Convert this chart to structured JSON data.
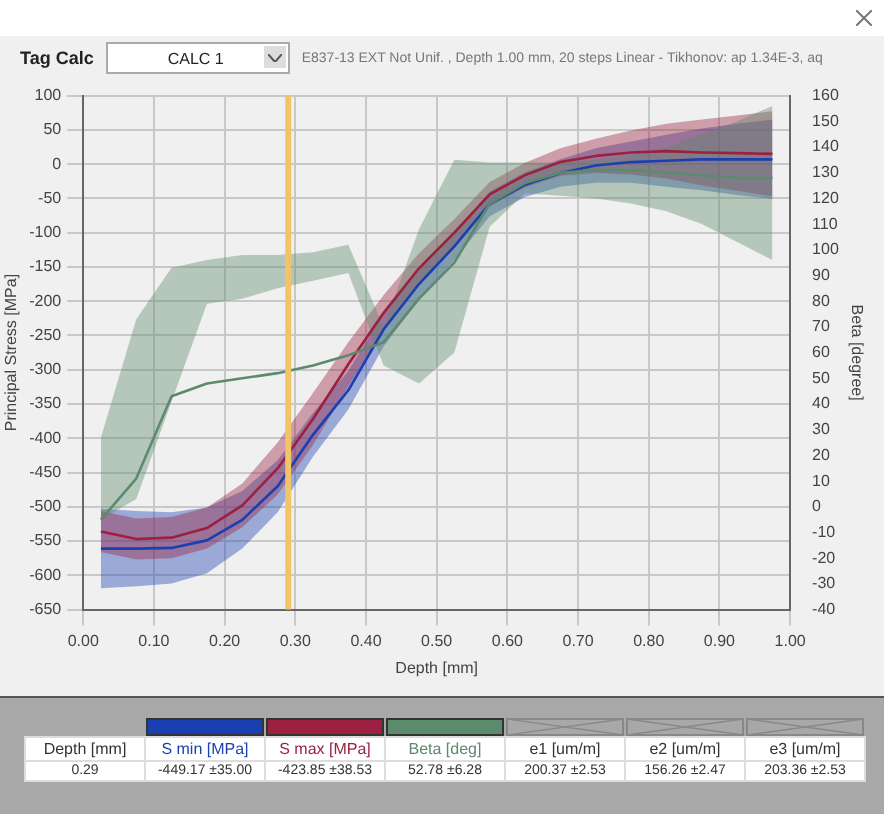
{
  "chart_data": {
    "type": "line",
    "title": "E837-13 EXT Not Unif. , Depth 1.00 mm, 20 steps Linear - Tikhonov: ap 1.34E-3, aq",
    "xlabel": "Depth [mm]",
    "ylabel": "Principal Stress [MPa]",
    "y2label": "Beta [degree]",
    "x": [
      0.025,
      0.075,
      0.125,
      0.175,
      0.225,
      0.275,
      0.325,
      0.375,
      0.425,
      0.475,
      0.525,
      0.575,
      0.625,
      0.675,
      0.725,
      0.775,
      0.825,
      0.875,
      0.925,
      0.975
    ],
    "series": [
      {
        "name": "Beta [deg]",
        "color": "#5c8a6c",
        "axis": "y2",
        "values": [
          -5,
          11,
          43,
          48,
          50,
          52,
          55,
          59,
          64,
          81,
          95,
          118,
          126,
          130,
          131,
          131,
          130,
          129,
          128,
          128
        ],
        "lower": [
          -5,
          3,
          41,
          79,
          81,
          85,
          88,
          91,
          55,
          48,
          60,
          109,
          122,
          121,
          120,
          118,
          115,
          110,
          103,
          96
        ],
        "upper": [
          27,
          73,
          93,
          96,
          98,
          98,
          99,
          102,
          70,
          108,
          135,
          134,
          134,
          134,
          135,
          137,
          140,
          145,
          150,
          156
        ]
      },
      {
        "name": "S max [MPa]",
        "color": "#9c2040",
        "values": [
          -536,
          -547,
          -545,
          -531,
          -498,
          -444,
          -372,
          -292,
          -217,
          -152,
          -100,
          -44,
          -16,
          3,
          12,
          17,
          19,
          17,
          16,
          15
        ],
        "lower": [
          -566,
          -577,
          -575,
          -561,
          -530,
          -482,
          -410,
          -324,
          -243,
          -174,
          -120,
          -62,
          -34,
          -17,
          -13,
          -15,
          -21,
          -31,
          -39,
          -47
        ],
        "upper": [
          -506,
          -517,
          -515,
          -501,
          -466,
          -406,
          -334,
          -260,
          -191,
          -130,
          -80,
          -26,
          2,
          23,
          37,
          49,
          59,
          65,
          71,
          77
        ]
      },
      {
        "name": "S min [MPa]",
        "color": "#1a3fb0",
        "values": [
          -561,
          -561,
          -560,
          -549,
          -519,
          -470,
          -395,
          -330,
          -241,
          -175,
          -120,
          -58,
          -30,
          -13,
          -2,
          3,
          5,
          7,
          7,
          7
        ],
        "lower": [
          -619,
          -616,
          -612,
          -597,
          -561,
          -508,
          -427,
          -358,
          -266,
          -197,
          -140,
          -76,
          -48,
          -33,
          -27,
          -27,
          -33,
          -38,
          -45,
          -51
        ],
        "upper": [
          -503,
          -506,
          -508,
          -501,
          -477,
          -432,
          -363,
          -302,
          -216,
          -153,
          -100,
          -40,
          -12,
          7,
          23,
          33,
          43,
          52,
          59,
          65
        ]
      }
    ],
    "xlim": [
      0,
      1
    ],
    "xticks": [
      {
        "value": 0,
        "label": "0.00"
      },
      {
        "value": 0.1,
        "label": "0.10"
      },
      {
        "value": 0.2,
        "label": "0.20"
      },
      {
        "value": 0.3,
        "label": "0.30"
      },
      {
        "value": 0.4,
        "label": "0.40"
      },
      {
        "value": 0.5,
        "label": "0.50"
      },
      {
        "value": 0.6,
        "label": "0.60"
      },
      {
        "value": 0.7,
        "label": "0.70"
      },
      {
        "value": 0.8,
        "label": "0.80"
      },
      {
        "value": 0.9,
        "label": "0.90"
      },
      {
        "value": 1,
        "label": "1.00"
      }
    ],
    "ylim": [
      -650,
      100
    ],
    "yticks": [
      -650,
      -600,
      -550,
      -500,
      -450,
      -400,
      -350,
      -300,
      -250,
      -200,
      -150,
      -100,
      -50,
      0,
      50,
      100
    ],
    "y2lim": [
      -40,
      160
    ],
    "y2ticks": [
      -40,
      -30,
      -20,
      -10,
      0,
      10,
      20,
      30,
      40,
      50,
      60,
      70,
      80,
      90,
      100,
      110,
      120,
      130,
      140,
      150,
      160
    ],
    "ref_lines": [
      {
        "axis": "x",
        "value": 0.29,
        "color": "#f2c46a"
      }
    ],
    "grid": true,
    "marker": "none",
    "annotations": [
      "Tag Calc",
      "CALC 1",
      "Depth [mm]",
      "0.29",
      "-449.17 ±35.00",
      "-423.85 ±38.53",
      "52.78 ±6.28",
      "e1 [um/m]",
      "200.37 ±2.53",
      "e2 [um/m]",
      "156.26 ±2.47",
      "e3 [um/m]",
      "203.36 ±2.53"
    ]
  }
}
